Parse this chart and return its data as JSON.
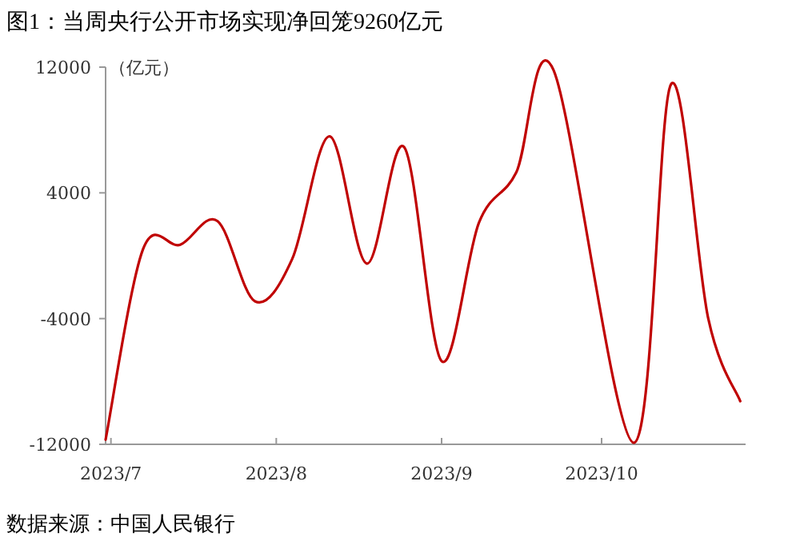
{
  "chart_data": {
    "type": "line",
    "title": "图1：当周央行公开市场实现净回笼9260亿元",
    "ylabel": "（亿元）",
    "annotations": [
      "数据来源：中国人民银行"
    ],
    "x": [
      "2023-06-30",
      "2023-07-07",
      "2023-07-14",
      "2023-07-21",
      "2023-07-28",
      "2023-08-04",
      "2023-08-11",
      "2023-08-18",
      "2023-08-25",
      "2023-09-01",
      "2023-09-08",
      "2023-09-15",
      "2023-09-22",
      "2023-10-07",
      "2023-10-14",
      "2023-10-21",
      "2023-10-27"
    ],
    "series": [
      {
        "color": "#c00000",
        "values": [
          -11700,
          400,
          700,
          2200,
          -2900,
          -200,
          7600,
          -500,
          6900,
          -6700,
          2100,
          5300,
          11800,
          -11900,
          10900,
          -4000,
          -9260
        ]
      }
    ],
    "xlim": [
      "2023-06-30",
      "2023-10-28"
    ],
    "xticks": [
      {
        "value": "2023-07-01",
        "label": "2023/7"
      },
      {
        "value": "2023-08-01",
        "label": "2023/8"
      },
      {
        "value": "2023-09-01",
        "label": "2023/9"
      },
      {
        "value": "2023-10-01",
        "label": "2023/10"
      }
    ],
    "ylim": [
      -12000,
      12000
    ],
    "yticks": [
      -12000,
      -4000,
      4000,
      12000
    ]
  }
}
